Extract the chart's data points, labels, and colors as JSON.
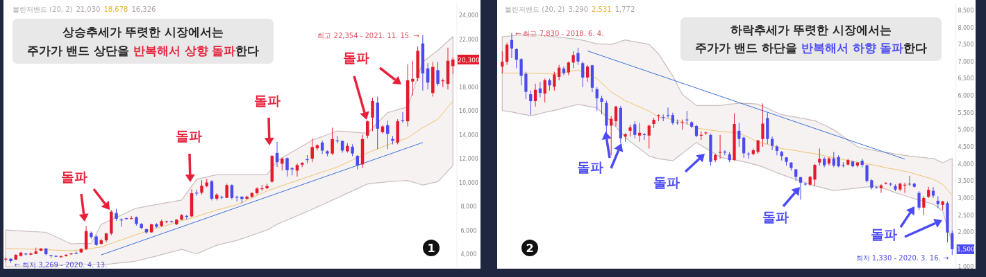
{
  "chart_data": [
    {
      "type": "candlestick",
      "title": "상승추세가 뚜렷한 시장에서는",
      "subtitle": "주가가 밴드 상단을 **반복해서 상향 돌파**한다",
      "tick_labels": "y",
      "categories": [
        null,
        null,
        null,
        null,
        null,
        null,
        null,
        null,
        null,
        null,
        null,
        null,
        null,
        null,
        null,
        null,
        null,
        null,
        null,
        null,
        null,
        null,
        null,
        null,
        null,
        null,
        null,
        null,
        null,
        null,
        null,
        null,
        null,
        null,
        null,
        null,
        null,
        null,
        null,
        null,
        null,
        null,
        null,
        null,
        null,
        null,
        null,
        null,
        null,
        null,
        null,
        null,
        null,
        null,
        null,
        null,
        null,
        null,
        null,
        null,
        null,
        null,
        null,
        null,
        null,
        null,
        null,
        null,
        null,
        null,
        null,
        null,
        null,
        null,
        null,
        null,
        null,
        null,
        null,
        null,
        null,
        null,
        null,
        null,
        null,
        null,
        null,
        null,
        null,
        null
      ],
      "ohlc": [
        [
          3570,
          3700,
          3400,
          3620
        ],
        [
          3620,
          3650,
          3269,
          3420
        ],
        [
          3550,
          4000,
          3500,
          3940
        ],
        [
          3860,
          4200,
          3800,
          4130
        ],
        [
          4050,
          4100,
          3900,
          3980
        ],
        [
          3960,
          4150,
          3900,
          4060
        ],
        [
          4030,
          4550,
          4000,
          4230
        ],
        [
          4290,
          4500,
          4250,
          4480
        ],
        [
          4480,
          4500,
          3900,
          4000
        ],
        [
          3900,
          3950,
          3700,
          3860
        ],
        [
          3860,
          3900,
          3750,
          3840
        ],
        [
          3790,
          3900,
          3700,
          3820
        ],
        [
          3850,
          4000,
          3800,
          3950
        ],
        [
          3990,
          4100,
          3950,
          4060
        ],
        [
          4100,
          4250,
          4000,
          4090
        ],
        [
          4150,
          4500,
          4100,
          4440
        ],
        [
          4440,
          6350,
          4350,
          5930
        ],
        [
          5790,
          5900,
          5300,
          5440
        ],
        [
          5480,
          5600,
          4700,
          4770
        ],
        [
          4870,
          5300,
          4800,
          5160
        ],
        [
          5160,
          5800,
          5000,
          5730
        ],
        [
          5730,
          7700,
          5600,
          7560
        ],
        [
          7450,
          7800,
          6800,
          6970
        ],
        [
          6900,
          7000,
          6300,
          6850
        ],
        [
          7010,
          7050,
          6900,
          6990
        ],
        [
          6980,
          7200,
          6950,
          7010
        ],
        [
          7100,
          7150,
          6400,
          6540
        ],
        [
          6540,
          6600,
          6100,
          6200
        ],
        [
          6100,
          6150,
          5700,
          5830
        ],
        [
          5830,
          6550,
          5800,
          6500
        ],
        [
          6500,
          6600,
          6200,
          6300
        ],
        [
          6370,
          6900,
          6300,
          6760
        ],
        [
          6700,
          6800,
          6600,
          6740
        ],
        [
          6760,
          6800,
          6650,
          6700
        ],
        [
          6500,
          6950,
          6450,
          6890
        ],
        [
          6890,
          7350,
          6850,
          7270
        ],
        [
          7200,
          7300,
          6900,
          7150
        ],
        [
          7170,
          9450,
          7100,
          9100
        ],
        [
          9150,
          9400,
          8900,
          9100
        ],
        [
          9150,
          10200,
          9000,
          9730
        ],
        [
          9700,
          10300,
          9600,
          10000
        ],
        [
          10100,
          10200,
          8500,
          8650
        ],
        [
          8650,
          9100,
          8500,
          8980
        ],
        [
          8800,
          8900,
          8600,
          8770
        ],
        [
          8720,
          9900,
          8700,
          9780
        ],
        [
          9780,
          9850,
          8600,
          8720
        ],
        [
          8800,
          8900,
          8400,
          8750
        ],
        [
          8820,
          8850,
          8250,
          8630
        ],
        [
          8650,
          8900,
          8550,
          8820
        ],
        [
          8820,
          9200,
          8700,
          9110
        ],
        [
          9110,
          9600,
          9000,
          9500
        ],
        [
          9450,
          9800,
          9300,
          9520
        ],
        [
          9520,
          9900,
          9450,
          9710
        ],
        [
          10070,
          12300,
          10000,
          12230
        ],
        [
          12480,
          13400,
          11300,
          11710
        ],
        [
          11580,
          12100,
          11000,
          12000
        ],
        [
          12040,
          12100,
          10500,
          11040
        ],
        [
          11190,
          11300,
          10600,
          11100
        ],
        [
          11000,
          11600,
          10500,
          11460
        ],
        [
          11500,
          11700,
          11300,
          11650
        ],
        [
          11950,
          12300,
          11600,
          11920
        ],
        [
          12000,
          13700,
          11700,
          12970
        ],
        [
          12870,
          13200,
          12700,
          13120
        ],
        [
          13350,
          13500,
          12400,
          12680
        ],
        [
          12620,
          12700,
          12200,
          12430
        ],
        [
          12430,
          14600,
          12300,
          13640
        ],
        [
          13520,
          13900,
          13300,
          13450
        ],
        [
          13490,
          13500,
          12500,
          12680
        ],
        [
          12620,
          13300,
          12500,
          13060
        ],
        [
          13000,
          13200,
          12200,
          12430
        ],
        [
          12230,
          12300,
          11100,
          11420
        ],
        [
          11520,
          14000,
          11200,
          13640
        ],
        [
          13930,
          15200,
          13700,
          15130
        ],
        [
          15440,
          17100,
          14300,
          16820
        ],
        [
          16690,
          17200,
          12800,
          14510
        ],
        [
          14220,
          14800,
          14100,
          14700
        ],
        [
          14800,
          15200,
          12800,
          14080
        ],
        [
          13650,
          13900,
          13200,
          13500
        ],
        [
          13350,
          15300,
          13200,
          15130
        ],
        [
          15230,
          15900,
          15000,
          15180
        ],
        [
          15130,
          19900,
          14700,
          18560
        ],
        [
          18460,
          20200,
          17300,
          18690
        ],
        [
          18750,
          21400,
          18500,
          21030
        ],
        [
          21650,
          22354,
          17700,
          19140
        ],
        [
          19560,
          20000,
          17800,
          18370
        ],
        [
          17500,
          20100,
          17200,
          19680
        ],
        [
          19410,
          20100,
          18100,
          18270
        ],
        [
          18500,
          18700,
          18000,
          18560
        ],
        [
          18270,
          21300,
          17800,
          20200
        ],
        [
          19750,
          20500,
          19100,
          20300
        ]
      ],
      "ylim": [
        2900,
        25000
      ],
      "yticks": [
        {
          "value": 4000,
          "label": "4,000"
        },
        {
          "value": 6000,
          "label": "6,000"
        },
        {
          "value": 8000,
          "label": "8,000"
        },
        {
          "value": 10000,
          "label": "10,000"
        },
        {
          "value": 12000,
          "label": "12,000"
        },
        {
          "value": 14000,
          "label": "14,000"
        },
        {
          "value": 16000,
          "label": "16,000"
        },
        {
          "value": 18000,
          "label": "18,000"
        },
        {
          "value": 22000,
          "label": "22,000"
        },
        {
          "value": 24000,
          "label": "24,000"
        }
      ],
      "series": [
        {
          "type": "line",
          "color": "#f0c26a",
          "values": [
            4480,
            4470,
            4460,
            4440,
            4430,
            4420,
            4410,
            4390,
            4380,
            4360,
            4340,
            4320,
            4300,
            4280,
            4330,
            4380,
            4430,
            4480,
            4540,
            4600,
            4750,
            4900,
            5050,
            5190,
            5340,
            5490,
            5640,
            5770,
            5900,
            6030,
            6160,
            6290,
            6410,
            6540,
            6670,
            6800,
            6920,
            7030,
            7150,
            7290,
            7430,
            7560,
            7700,
            7810,
            7920,
            8030,
            8140,
            8330,
            8530,
            8720,
            8910,
            9110,
            9300,
            9450,
            9600,
            9740,
            9890,
            10030,
            10170,
            10310,
            10460,
            10600,
            10740,
            10880,
            11020,
            11160,
            11300,
            11500,
            11690,
            11890,
            12090,
            12280,
            12480,
            12650,
            12820,
            12990,
            13160,
            13310,
            13450,
            13600,
            13740,
            14030,
            14310,
            14600,
            14830,
            15070,
            15300,
            15810,
            16320,
            16830
          ],
          "upper": [
            6020,
            6000,
            5970,
            5950,
            5930,
            5900,
            5880,
            5860,
            5830,
            5640,
            5450,
            5260,
            5060,
            4870,
            4880,
            4890,
            4890,
            4900,
            5700,
            6500,
            6690,
            6890,
            7080,
            7280,
            7470,
            7670,
            7860,
            7930,
            8010,
            8080,
            8160,
            8230,
            8310,
            8380,
            8460,
            8530,
            9110,
            9690,
            10270,
            10370,
            10460,
            10560,
            10650,
            10650,
            10650,
            10650,
            10650,
            10650,
            10650,
            10650,
            10650,
            10650,
            10650,
            11230,
            11810,
            12060,
            12310,
            12560,
            12800,
            13050,
            13300,
            13550,
            13700,
            13860,
            14010,
            14170,
            14320,
            14290,
            14260,
            14220,
            14190,
            14160,
            14130,
            14560,
            15000,
            15430,
            15860,
            15980,
            16100,
            16220,
            16340,
            17590,
            18850,
            20100,
            20420,
            20750,
            21070,
            21460,
            21840,
            22230
          ],
          "lower": [
            2940,
            2940,
            2940,
            2940,
            2940,
            2930,
            2930,
            2930,
            2930,
            2980,
            3040,
            3090,
            3150,
            3200,
            3190,
            3180,
            3160,
            3150,
            3130,
            3100,
            3150,
            3190,
            3240,
            3280,
            3330,
            3370,
            3420,
            3530,
            3640,
            3750,
            3850,
            3960,
            4070,
            4180,
            4290,
            4400,
            4280,
            4150,
            4030,
            4210,
            4390,
            4570,
            4750,
            4850,
            4950,
            5050,
            5150,
            5300,
            5440,
            5590,
            5730,
            5880,
            6020,
            6260,
            6500,
            6680,
            6860,
            7040,
            7220,
            7400,
            7580,
            7760,
            7950,
            8140,
            8340,
            8530,
            8720,
            8910,
            9110,
            9300,
            9490,
            9690,
            9880,
            9930,
            9980,
            10020,
            10070,
            10100,
            10120,
            10150,
            10170,
            10040,
            9920,
            9790,
            9880,
            9980,
            10070,
            10520,
            10970,
            11420
          ]
        },
        {
          "type": "line",
          "color": "#3b6fd8",
          "values": [
            null,
            null,
            null,
            null,
            null,
            null,
            null,
            null,
            null,
            null,
            null,
            null,
            null,
            null,
            null,
            null,
            null,
            null,
            null,
            3940,
            null,
            null,
            null,
            null,
            null,
            null,
            null,
            null,
            null,
            null,
            null,
            null,
            null,
            null,
            null,
            null,
            null,
            null,
            null,
            null,
            null,
            null,
            null,
            null,
            null,
            null,
            null,
            null,
            null,
            null,
            null,
            null,
            null,
            null,
            null,
            null,
            null,
            null,
            null,
            null,
            null,
            null,
            null,
            null,
            null,
            null,
            null,
            null,
            null,
            null,
            null,
            null,
            null,
            null,
            null,
            null,
            null,
            null,
            null,
            null,
            null,
            null,
            null,
            13350,
            null,
            null,
            null,
            null,
            null,
            null
          ]
        }
      ],
      "annotations": [
        "볼린저밴드 (20, 2)",
        "21,030",
        "18,678",
        "16,326",
        "최고 22,354 - 2021. 11. 15. →",
        "← 최저 3,269 - 2020. 4. 13.",
        "20,300",
        "1",
        "돌파",
        "돌파",
        "돌파",
        "돌파"
      ]
    },
    {
      "type": "candlestick",
      "title": "하락추세가 뚜렷한 시장에서는",
      "subtitle": "주가가 밴드 하단을 **반복해서 하향 돌파**한다",
      "tick_labels": "y",
      "categories": [
        null,
        null,
        null,
        null,
        null,
        null,
        null,
        null,
        null,
        null,
        null,
        null,
        null,
        null,
        null,
        null,
        null,
        null,
        null,
        null,
        null,
        null,
        null,
        null,
        null,
        null,
        null,
        null,
        null,
        null,
        null,
        null,
        null,
        null,
        null,
        null,
        null,
        null,
        null,
        null,
        null,
        null,
        null,
        null,
        null,
        null,
        null,
        null,
        null,
        null,
        null,
        null,
        null,
        null,
        null,
        null,
        null,
        null,
        null,
        null,
        null,
        null,
        null,
        null,
        null,
        null,
        null,
        null,
        null,
        null,
        null,
        null,
        null,
        null,
        null,
        null,
        null,
        null,
        null,
        null,
        null,
        null,
        null,
        null,
        null,
        null,
        null,
        null,
        null,
        null,
        null,
        null,
        null,
        null,
        null,
        null
      ],
      "ohlc": [
        [
          6850,
          7300,
          6650,
          6990
        ],
        [
          6990,
          7550,
          6900,
          7490
        ],
        [
          7630,
          7830,
          7100,
          7380
        ],
        [
          7360,
          7400,
          6800,
          7050
        ],
        [
          7070,
          7100,
          6300,
          6580
        ],
        [
          6640,
          6700,
          5900,
          6110
        ],
        [
          6040,
          6150,
          5430,
          5840
        ],
        [
          5840,
          6350,
          5680,
          6170
        ],
        [
          6210,
          6400,
          5950,
          6080
        ],
        [
          6060,
          6500,
          5800,
          6450
        ],
        [
          6450,
          6500,
          6150,
          6300
        ],
        [
          6260,
          6700,
          6150,
          6620
        ],
        [
          6550,
          6900,
          6450,
          6820
        ],
        [
          6790,
          6850,
          6600,
          6660
        ],
        [
          6680,
          7000,
          6600,
          6970
        ],
        [
          6970,
          7300,
          6800,
          7190
        ],
        [
          7250,
          7400,
          6900,
          7000
        ],
        [
          6950,
          7000,
          6250,
          6530
        ],
        [
          6530,
          6900,
          6400,
          6850
        ],
        [
          6890,
          6900,
          6100,
          6230
        ],
        [
          6190,
          6250,
          5550,
          5920
        ],
        [
          5920,
          6000,
          5450,
          5820
        ],
        [
          5780,
          5850,
          4900,
          5120
        ],
        [
          5120,
          5400,
          4250,
          5320
        ],
        [
          5250,
          5700,
          5100,
          5680
        ],
        [
          5640,
          5700,
          4600,
          4750
        ],
        [
          4800,
          4900,
          4650,
          4870
        ],
        [
          4970,
          5150,
          4800,
          5070
        ],
        [
          5160,
          5250,
          4750,
          4850
        ],
        [
          4830,
          5200,
          4650,
          4910
        ],
        [
          4870,
          4900,
          4700,
          4850
        ],
        [
          4830,
          5150,
          4450,
          5120
        ],
        [
          5170,
          5350,
          5050,
          5290
        ],
        [
          5410,
          5450,
          5250,
          5430
        ],
        [
          5370,
          5450,
          5250,
          5360
        ],
        [
          5430,
          5650,
          5350,
          5420
        ],
        [
          5430,
          5500,
          5150,
          5200
        ],
        [
          5220,
          5300,
          5150,
          5210
        ],
        [
          5200,
          5300,
          5000,
          5220
        ],
        [
          5300,
          5550,
          5150,
          5290
        ],
        [
          5220,
          5250,
          5050,
          5090
        ],
        [
          5110,
          5150,
          4780,
          4820
        ],
        [
          4840,
          4950,
          4700,
          4850
        ],
        [
          4900,
          4950,
          4850,
          4920
        ],
        [
          4850,
          4880,
          3950,
          4060
        ],
        [
          4110,
          4300,
          4050,
          4260
        ],
        [
          4340,
          4850,
          4150,
          4350
        ],
        [
          4360,
          4400,
          4250,
          4330
        ],
        [
          4280,
          4350,
          4050,
          4110
        ],
        [
          4110,
          5480,
          4100,
          5170
        ],
        [
          4970,
          5200,
          4500,
          4730
        ],
        [
          4770,
          4800,
          4180,
          4310
        ],
        [
          4300,
          4350,
          4150,
          4290
        ],
        [
          4290,
          4450,
          4250,
          4400
        ],
        [
          4350,
          4700,
          4300,
          4690
        ],
        [
          4730,
          5770,
          4500,
          5180
        ],
        [
          5340,
          5500,
          4580,
          4730
        ],
        [
          4730,
          4800,
          4400,
          4530
        ],
        [
          4510,
          4550,
          4250,
          4380
        ],
        [
          4350,
          4380,
          4100,
          4230
        ],
        [
          4190,
          4200,
          3950,
          4060
        ],
        [
          4040,
          4050,
          3800,
          3880
        ],
        [
          3840,
          3850,
          3500,
          3620
        ],
        [
          3610,
          3620,
          2950,
          3450
        ],
        [
          3420,
          3450,
          3350,
          3410
        ],
        [
          3390,
          3650,
          3350,
          3620
        ],
        [
          3540,
          4000,
          3350,
          3970
        ],
        [
          4040,
          4450,
          3950,
          4150
        ],
        [
          4150,
          4200,
          3900,
          3960
        ],
        [
          4010,
          4200,
          3950,
          4160
        ],
        [
          4160,
          4350,
          3900,
          3950
        ],
        [
          4200,
          4250,
          3900,
          3930
        ],
        [
          3970,
          4050,
          3900,
          3960
        ],
        [
          3980,
          4150,
          3950,
          4110
        ],
        [
          4070,
          4100,
          3900,
          3930
        ],
        [
          3950,
          4050,
          3900,
          4040
        ],
        [
          4090,
          4150,
          3900,
          3970
        ],
        [
          3960,
          3980,
          3450,
          3500
        ],
        [
          3520,
          3550,
          3250,
          3300
        ],
        [
          3310,
          3350,
          3280,
          3300
        ],
        [
          3290,
          3400,
          3150,
          3370
        ],
        [
          3430,
          3470,
          3400,
          3440
        ],
        [
          3420,
          3450,
          3350,
          3400
        ],
        [
          3350,
          3400,
          3200,
          3250
        ],
        [
          3250,
          3450,
          3200,
          3420
        ],
        [
          3380,
          3450,
          3150,
          3390
        ],
        [
          3420,
          3650,
          3350,
          3420
        ],
        [
          3420,
          3450,
          3300,
          3330
        ],
        [
          3150,
          3200,
          2650,
          2720
        ],
        [
          2720,
          3050,
          2500,
          3000
        ],
        [
          3040,
          3330,
          3000,
          3240
        ],
        [
          3210,
          3320,
          3000,
          3070
        ],
        [
          2920,
          3050,
          2700,
          2820
        ],
        [
          2800,
          2920,
          2650,
          2900
        ],
        [
          2850,
          2900,
          1700,
          1990
        ],
        [
          1970,
          2050,
          1330,
          1500
        ]
      ],
      "ylim": [
        970,
        8700
      ],
      "yticks": [
        {
          "value": 1000,
          "label": "1,000"
        },
        {
          "value": 2000,
          "label": "2,000"
        },
        {
          "value": 2500,
          "label": "2,500"
        },
        {
          "value": 3000,
          "label": "3,000"
        },
        {
          "value": 3500,
          "label": "3,500"
        },
        {
          "value": 4000,
          "label": "4,000"
        },
        {
          "value": 4500,
          "label": "4,500"
        },
        {
          "value": 5000,
          "label": "5,000"
        },
        {
          "value": 5500,
          "label": "5,500"
        },
        {
          "value": 6000,
          "label": "6,000"
        },
        {
          "value": 6500,
          "label": "6,500"
        },
        {
          "value": 7000,
          "label": "7,000"
        },
        {
          "value": 7500,
          "label": "7,500"
        },
        {
          "value": 8000,
          "label": "8,000"
        },
        {
          "value": 8500,
          "label": "8,500"
        }
      ],
      "series": [
        {
          "type": "line",
          "color": "#f0c26a",
          "values": [
            6660,
            6660,
            6660,
            6660,
            6660,
            6660,
            6660,
            6650,
            6650,
            6640,
            6640,
            6630,
            6650,
            6680,
            6700,
            6730,
            6750,
            6690,
            6630,
            6560,
            6500,
            6370,
            6240,
            6110,
            6020,
            5940,
            5850,
            5790,
            5730,
            5670,
            5610,
            5550,
            5460,
            5370,
            5350,
            5320,
            5300,
            5270,
            5240,
            5180,
            5110,
            5050,
            5030,
            5010,
            4990,
            4970,
            4950,
            4940,
            4930,
            4910,
            4900,
            4840,
            4780,
            4710,
            4650,
            4610,
            4570,
            4530,
            4490,
            4450,
            4430,
            4410,
            4390,
            4360,
            4340,
            4320,
            4300,
            4270,
            4240,
            4210,
            4180,
            4150,
            4130,
            4100,
            4080,
            4050,
            4030,
            4000,
            3980,
            3950,
            3920,
            3890,
            3860,
            3840,
            3810,
            3780,
            3750,
            3710,
            3670,
            3630,
            3590,
            3550,
            3480,
            3400,
            3240,
            3080
          ],
          "upper": [
            7730,
            7740,
            7750,
            7770,
            7780,
            7790,
            7800,
            7790,
            7770,
            7760,
            7740,
            7730,
            7710,
            7700,
            7680,
            7670,
            7650,
            7620,
            7590,
            7550,
            7520,
            7510,
            7510,
            7500,
            7540,
            7590,
            7630,
            7600,
            7580,
            7550,
            7530,
            7500,
            7360,
            7220,
            7010,
            6790,
            6580,
            6310,
            6040,
            5930,
            5820,
            5710,
            5710,
            5710,
            5710,
            5710,
            5710,
            5730,
            5750,
            5760,
            5780,
            5770,
            5770,
            5760,
            5750,
            5690,
            5630,
            5560,
            5500,
            5440,
            5420,
            5390,
            5370,
            5340,
            5320,
            5290,
            5270,
            5200,
            5140,
            5070,
            5000,
            4900,
            4800,
            4700,
            4600,
            4500,
            4470,
            4440,
            4410,
            4380,
            4360,
            4340,
            4320,
            4290,
            4270,
            4250,
            4230,
            4220,
            4200,
            4190,
            4170,
            4160,
            4100,
            4030,
            4100,
            4160
          ],
          "lower": [
            5570,
            5540,
            5520,
            5490,
            5460,
            5440,
            5410,
            5440,
            5470,
            5510,
            5540,
            5570,
            5600,
            5640,
            5670,
            5710,
            5740,
            5720,
            5690,
            5670,
            5640,
            5510,
            5370,
            5240,
            5080,
            4930,
            4770,
            4660,
            4550,
            4450,
            4340,
            4230,
            4190,
            4150,
            4130,
            4110,
            4090,
            4200,
            4300,
            4410,
            4520,
            4630,
            4540,
            4460,
            4370,
            4290,
            4200,
            4170,
            4150,
            4120,
            4090,
            4060,
            4030,
            3990,
            3960,
            3910,
            3850,
            3800,
            3740,
            3690,
            3640,
            3590,
            3540,
            3500,
            3450,
            3400,
            3350,
            3320,
            3290,
            3250,
            3220,
            3230,
            3250,
            3260,
            3280,
            3290,
            3310,
            3320,
            3340,
            3350,
            3300,
            3260,
            3210,
            3160,
            3110,
            3070,
            3020,
            2980,
            2940,
            2900,
            2860,
            2820,
            2720,
            2610,
            2140,
            1670
          ]
        },
        {
          "type": "line",
          "color": "#3b6fd8",
          "values": [
            null,
            null,
            null,
            null,
            null,
            null,
            null,
            null,
            null,
            null,
            null,
            null,
            null,
            null,
            null,
            null,
            null,
            null,
            7310,
            null,
            null,
            null,
            null,
            null,
            null,
            null,
            null,
            null,
            null,
            null,
            null,
            null,
            null,
            null,
            null,
            null,
            null,
            null,
            null,
            null,
            null,
            null,
            null,
            null,
            null,
            null,
            null,
            null,
            null,
            null,
            null,
            null,
            null,
            null,
            null,
            null,
            null,
            null,
            null,
            null,
            null,
            null,
            null,
            null,
            null,
            null,
            null,
            null,
            null,
            null,
            null,
            null,
            null,
            null,
            null,
            null,
            null,
            null,
            null,
            null,
            null,
            null,
            null,
            null,
            null,
            4140,
            null,
            null,
            null,
            null,
            null,
            null,
            null,
            null,
            null,
            null
          ]
        }
      ],
      "annotations": [
        "볼린저밴드 (20, 2)",
        "3,290",
        "2,531",
        "1,772",
        "← 최고 7,830 - 2018. 6. 4.",
        "최저 1,330 - 2020. 3. 16. →",
        "1,500",
        "2",
        "돌파",
        "돌파",
        "돌파",
        "돌파"
      ]
    }
  ]
}
